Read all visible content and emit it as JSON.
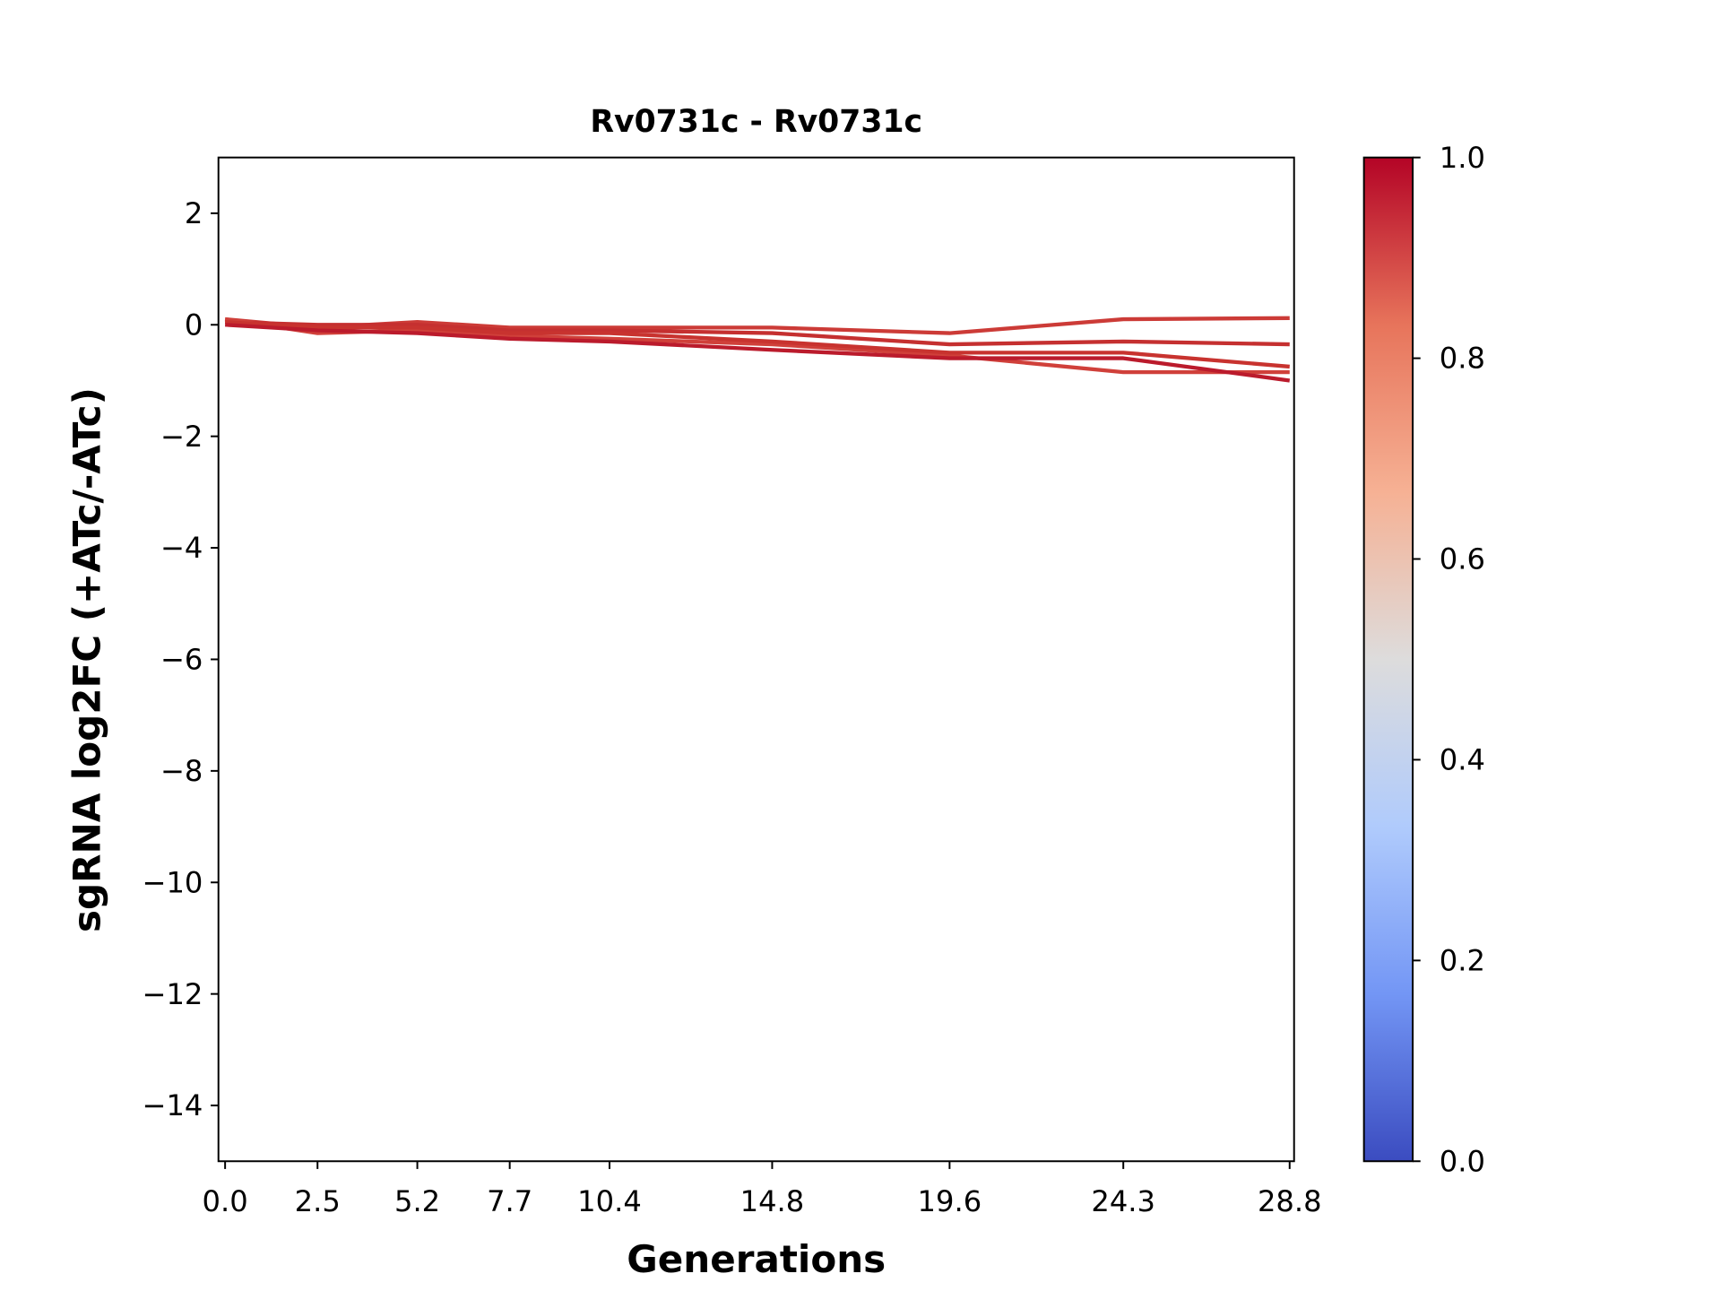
{
  "chart_data": {
    "type": "line",
    "title": "Rv0731c - Rv0731c",
    "xlabel": "Generations",
    "ylabel": "sgRNA log2FC (+ATc/-ATc)",
    "x": [
      0.0,
      2.5,
      5.2,
      7.7,
      10.4,
      14.8,
      19.6,
      24.3,
      28.8
    ],
    "x_tick_labels": [
      "0.0",
      "2.5",
      "5.2",
      "7.7",
      "10.4",
      "14.8",
      "19.6",
      "24.3",
      "28.8"
    ],
    "y_ticks": [
      2,
      0,
      -2,
      -4,
      -6,
      -8,
      -10,
      -12,
      -14
    ],
    "y_tick_labels": [
      "2",
      "0",
      "−2",
      "−4",
      "−6",
      "−8",
      "−10",
      "−12",
      "−14"
    ],
    "xlim": [
      -0.18,
      28.92
    ],
    "ylim": [
      -15,
      3
    ],
    "grid": false,
    "series": [
      {
        "values": [
          0.1,
          -0.05,
          0.05,
          -0.05,
          -0.05,
          -0.05,
          -0.15,
          0.1,
          0.12
        ],
        "color": "#cc3b37"
      },
      {
        "values": [
          0.05,
          0.0,
          0.0,
          -0.1,
          -0.1,
          -0.15,
          -0.35,
          -0.3,
          -0.35
        ],
        "color": "#c53030"
      },
      {
        "values": [
          0.1,
          -0.15,
          -0.1,
          -0.2,
          -0.25,
          -0.35,
          -0.55,
          -0.85,
          -0.85
        ],
        "color": "#d0403a"
      },
      {
        "values": [
          0.05,
          -0.05,
          -0.05,
          -0.15,
          -0.15,
          -0.3,
          -0.5,
          -0.5,
          -0.75
        ],
        "color": "#c8332f"
      },
      {
        "values": [
          0.0,
          -0.1,
          -0.15,
          -0.25,
          -0.3,
          -0.45,
          -0.6,
          -0.6,
          -1.0
        ],
        "color": "#bb1b2c"
      }
    ],
    "colorbar": {
      "colormap": "coolwarm",
      "range": [
        0.0,
        1.0
      ],
      "tick_labels": [
        "0.0",
        "0.2",
        "0.4",
        "0.6",
        "0.8",
        "1.0"
      ],
      "colors": [
        "#3b4cc0",
        "#7396f5",
        "#b0cbfc",
        "#dddcdc",
        "#f6b194",
        "#e7745b",
        "#b40426"
      ]
    }
  }
}
